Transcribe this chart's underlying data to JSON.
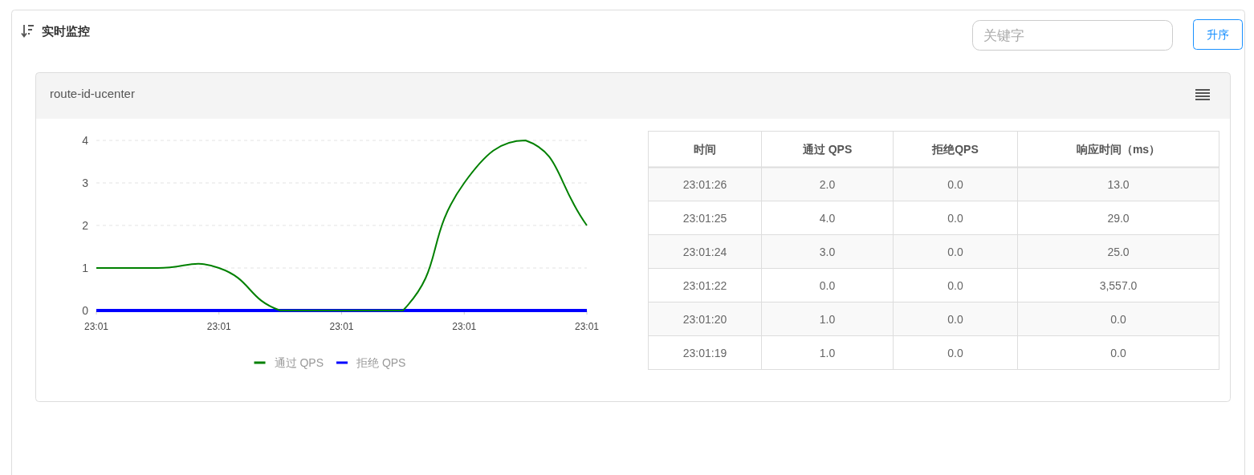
{
  "chart_data": [
    {
      "type": "line",
      "title": "实时监控",
      "subtitle": "route-id-ucenter",
      "annotations": [
        "关键字",
        "升序"
      ],
      "categories": [
        "23:01",
        null,
        "23:01",
        null,
        "23:01",
        null,
        "23:01",
        null,
        "23:01"
      ],
      "series": [
        {
          "name": "通过 QPS",
          "color": "#008000",
          "values": [
            1,
            1,
            1,
            0,
            0,
            0,
            3,
            4,
            2
          ]
        },
        {
          "name": "拒绝 QPS",
          "color": "#0000ff",
          "values": [
            0,
            0,
            0,
            0,
            0,
            0,
            0,
            0,
            0
          ]
        }
      ],
      "ylim": [
        0,
        4
      ],
      "yticks": [
        0,
        1,
        2,
        3,
        4
      ],
      "grid": "y",
      "legend": "bottom"
    },
    {
      "type": "other",
      "categories": [
        "时间",
        "通过 QPS",
        "拒绝QPS",
        "响应时间（ms）"
      ],
      "cell_labels": [
        [
          "23:01:26",
          "2.0",
          "0.0",
          "13.0"
        ],
        [
          "23:01:25",
          "4.0",
          "0.0",
          "29.0"
        ],
        [
          "23:01:24",
          "3.0",
          "0.0",
          "25.0"
        ],
        [
          "23:01:22",
          "0.0",
          "0.0",
          "3,557.0"
        ],
        [
          "23:01:20",
          "1.0",
          "0.0",
          "0.0"
        ],
        [
          "23:01:19",
          "1.0",
          "0.0",
          "0.0"
        ]
      ]
    }
  ]
}
